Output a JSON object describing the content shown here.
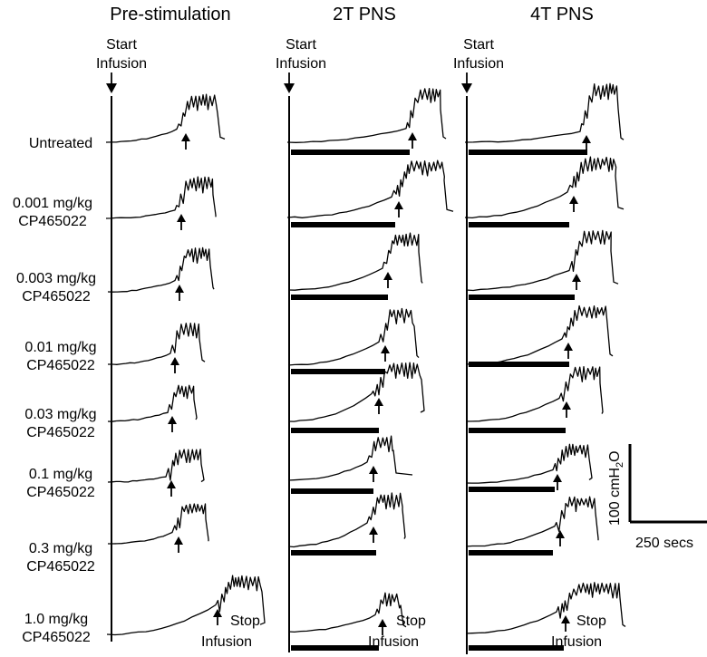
{
  "panels": [
    {
      "title": "Pre-stimulation",
      "start_label": [
        "Start",
        "Infusion"
      ]
    },
    {
      "title": "2T PNS",
      "start_label": [
        "Start",
        "Infusion"
      ]
    },
    {
      "title": "4T PNS",
      "start_label": [
        "Start",
        "Infusion"
      ]
    }
  ],
  "rows": [
    {
      "label": [
        "Untreated"
      ]
    },
    {
      "label": [
        "0.001 mg/kg",
        "CP465022"
      ]
    },
    {
      "label": [
        "0.003 mg/kg",
        "CP465022"
      ]
    },
    {
      "label": [
        "0.01 mg/kg",
        "CP465022"
      ]
    },
    {
      "label": [
        "0.03 mg/kg",
        "CP465022"
      ]
    },
    {
      "label": [
        "0.1 mg/kg",
        "CP465022"
      ]
    },
    {
      "label": [
        "0.3 mg/kg",
        "CP465022"
      ]
    },
    {
      "label": [
        "1.0 mg/kg",
        "CP465022"
      ]
    }
  ],
  "stop_label": [
    "Stop",
    "Infusion"
  ],
  "scale_bar": {
    "vertical": "100 cmH",
    "vertical_sub": "2",
    "vertical_end": "O",
    "horizontal": "250 secs"
  }
}
